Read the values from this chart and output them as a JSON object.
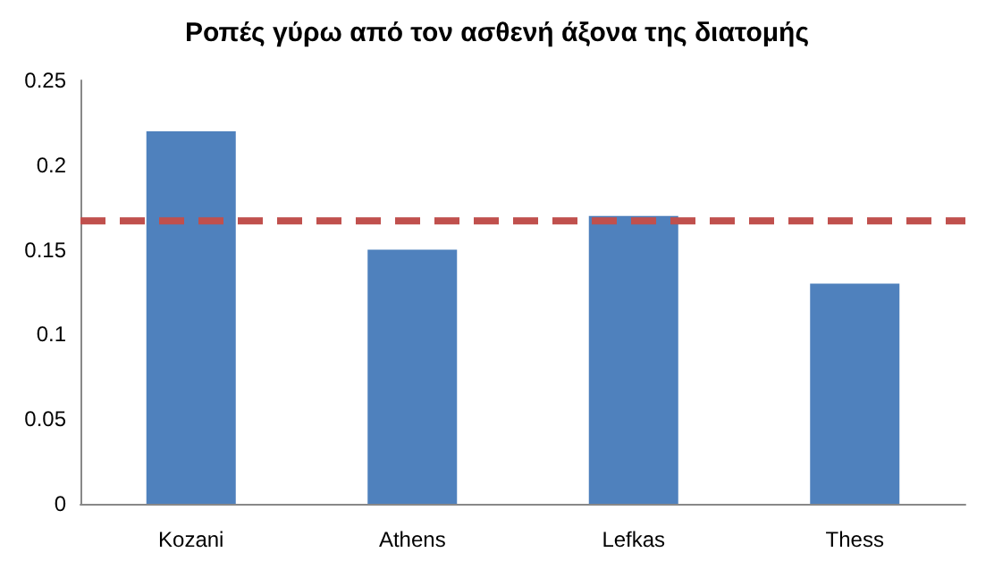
{
  "chart_data": {
    "type": "bar",
    "title": "Ροπές γύρω από τον ασθενή άξονα της διατομής",
    "categories": [
      "Kozani",
      "Athens",
      "Lefkas",
      "Thess"
    ],
    "values": [
      0.22,
      0.15,
      0.17,
      0.13
    ],
    "color": "#4f81bd",
    "ylim": [
      0,
      0.25
    ],
    "yticks": [
      0,
      0.05,
      0.1,
      0.15,
      0.2,
      0.25
    ],
    "grid": false,
    "ref_lines": [
      {
        "axis": "y",
        "value": 0.167,
        "color": "#c0504d",
        "line_style": "dashed"
      }
    ]
  }
}
